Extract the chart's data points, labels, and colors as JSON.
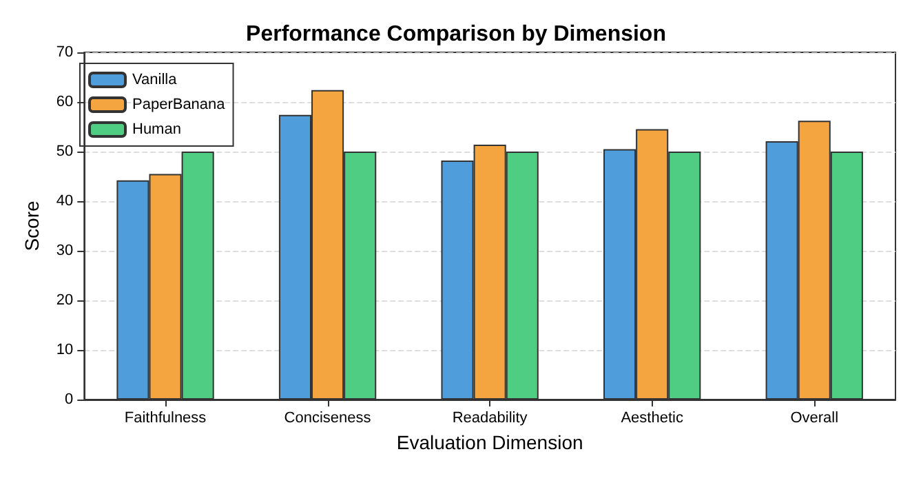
{
  "chart_data": {
    "type": "bar",
    "title": "Performance Comparison by Dimension",
    "xlabel": "Evaluation Dimension",
    "ylabel": "Score",
    "categories": [
      "Faithfulness",
      "Conciseness",
      "Readability",
      "Aesthetic",
      "Overall"
    ],
    "series": [
      {
        "name": "Vanilla",
        "color": "#4f9ddb",
        "values": [
          44.2,
          57.4,
          48.2,
          50.5,
          52.1
        ]
      },
      {
        "name": "PaperBanana",
        "color": "#f4a540",
        "values": [
          45.5,
          62.4,
          51.4,
          54.5,
          56.2
        ]
      },
      {
        "name": "Human",
        "color": "#4fcd82",
        "values": [
          50,
          50,
          50,
          50,
          50
        ]
      }
    ],
    "ylim": [
      0,
      70
    ],
    "yticks": [
      0,
      10,
      20,
      30,
      40,
      50,
      60,
      70
    ],
    "grid": "y",
    "legend": "top left"
  }
}
